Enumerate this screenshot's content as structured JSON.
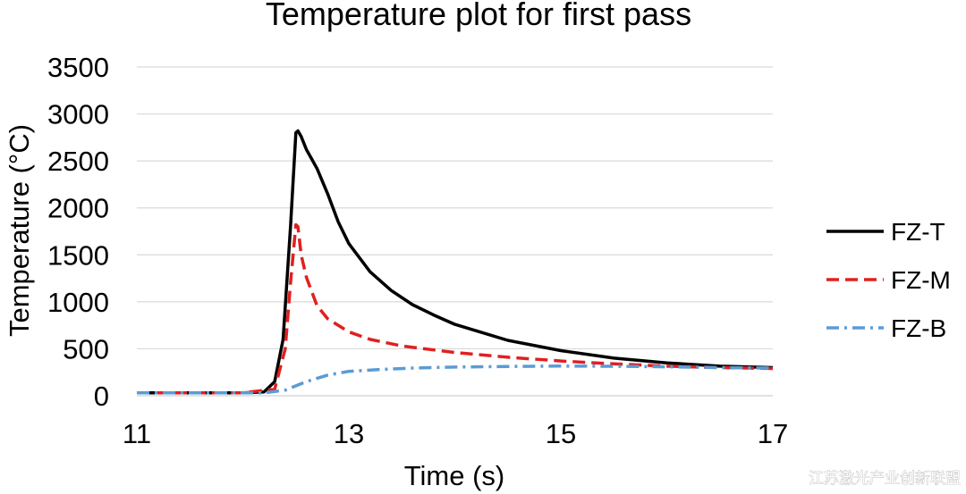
{
  "chart_data": {
    "type": "line",
    "title": "Temperature plot for first pass",
    "xlabel": "Time (s)",
    "ylabel": "Temperature (°C)",
    "xlim": [
      11,
      17
    ],
    "ylim": [
      0,
      3500
    ],
    "xticks": [
      11,
      13,
      15,
      17
    ],
    "yticks": [
      0,
      500,
      1000,
      1500,
      2000,
      2500,
      3000,
      3500
    ],
    "grid": "horizontal",
    "legend_position": "right",
    "series": [
      {
        "name": "FZ-T",
        "color": "#000000",
        "dash": "solid",
        "x": [
          11.0,
          12.0,
          12.2,
          12.3,
          12.38,
          12.45,
          12.5,
          12.52,
          12.55,
          12.6,
          12.65,
          12.7,
          12.8,
          12.9,
          13.0,
          13.2,
          13.4,
          13.6,
          13.8,
          14.0,
          14.5,
          15.0,
          15.5,
          16.0,
          16.5,
          17.0
        ],
        "y": [
          30,
          30,
          40,
          150,
          600,
          1800,
          2800,
          2820,
          2760,
          2620,
          2520,
          2420,
          2150,
          1850,
          1620,
          1320,
          1120,
          970,
          860,
          760,
          590,
          480,
          400,
          350,
          315,
          300
        ]
      },
      {
        "name": "FZ-M",
        "color": "#e02020",
        "dash": "dashed",
        "x": [
          11.0,
          12.0,
          12.3,
          12.4,
          12.45,
          12.5,
          12.52,
          12.55,
          12.6,
          12.7,
          12.8,
          13.0,
          13.2,
          13.5,
          14.0,
          14.5,
          15.0,
          15.5,
          16.0,
          16.5,
          17.0
        ],
        "y": [
          30,
          30,
          70,
          500,
          1200,
          1820,
          1800,
          1500,
          1260,
          960,
          820,
          680,
          600,
          530,
          460,
          410,
          370,
          340,
          315,
          300,
          290
        ]
      },
      {
        "name": "FZ-B",
        "color": "#5b9bd5",
        "dash": "dashdot",
        "x": [
          11.0,
          12.2,
          12.4,
          12.6,
          12.8,
          13.0,
          13.3,
          13.6,
          14.0,
          14.5,
          15.0,
          15.5,
          16.0,
          16.5,
          17.0
        ],
        "y": [
          30,
          30,
          60,
          150,
          220,
          260,
          280,
          295,
          305,
          312,
          316,
          314,
          308,
          300,
          295
        ]
      }
    ]
  },
  "watermark": "江苏激光产业创新联盟"
}
